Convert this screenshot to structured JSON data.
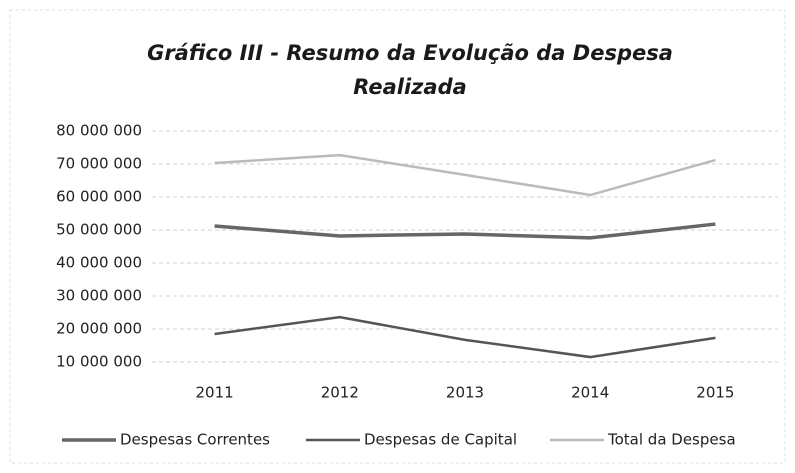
{
  "chart_data": {
    "type": "line",
    "title": "Gráfico III - Resumo da Evolução da Despesa Realizada",
    "categories": [
      "2011",
      "2012",
      "2013",
      "2014",
      "2015"
    ],
    "series": [
      {
        "name": "Despesas Correntes",
        "color": "#666666",
        "values": [
          51200000,
          48200000,
          48800000,
          47600000,
          51800000
        ]
      },
      {
        "name": "Despesas de Capital",
        "color": "#555555",
        "values": [
          18500000,
          23600000,
          16700000,
          11500000,
          17300000
        ]
      },
      {
        "name": "Total da Despesa",
        "color": "#bbbbbb",
        "values": [
          70300000,
          72700000,
          66700000,
          60600000,
          71200000
        ]
      }
    ],
    "ylim": [
      10000000,
      80000000
    ],
    "yticks": [
      {
        "value": 10000000,
        "label": "10 000 000"
      },
      {
        "value": 20000000,
        "label": "20 000 000"
      },
      {
        "value": 30000000,
        "label": "30 000 000"
      },
      {
        "value": 40000000,
        "label": "40 000 000"
      },
      {
        "value": 50000000,
        "label": "50 000 000"
      },
      {
        "value": 60000000,
        "label": "60 000 000"
      },
      {
        "value": 70000000,
        "label": "70 000 000"
      },
      {
        "value": 80000000,
        "label": "80 000 000"
      }
    ],
    "grid": true,
    "legend": "bottom"
  }
}
